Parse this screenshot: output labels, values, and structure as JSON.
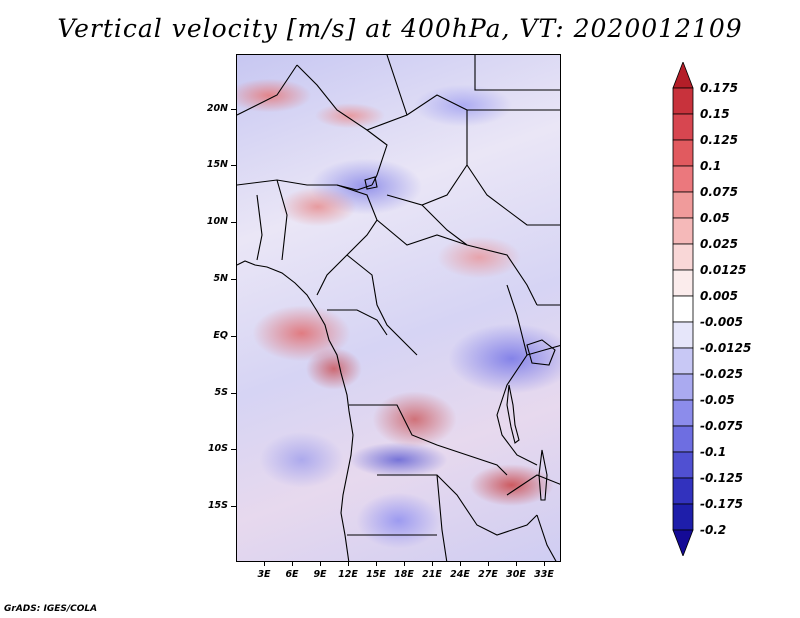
{
  "title": "Vertical velocity [m/s] at 400hPa, VT: 2020012109",
  "y_axis": {
    "labels": [
      "20N",
      "15N",
      "10N",
      "5N",
      "EQ",
      "5S",
      "10S",
      "15S"
    ]
  },
  "x_axis": {
    "labels": [
      "3E",
      "6E",
      "9E",
      "12E",
      "15E",
      "18E",
      "21E",
      "24E",
      "27E",
      "30E",
      "33E"
    ]
  },
  "colorbar": {
    "labels": [
      "0.175",
      "0.15",
      "0.125",
      "0.1",
      "0.075",
      "0.05",
      "0.025",
      "0.0125",
      "0.005",
      "-0.005",
      "-0.0125",
      "-0.025",
      "-0.05",
      "-0.075",
      "-0.1",
      "-0.125",
      "-0.175",
      "-0.2"
    ],
    "colors": [
      "#b41e28",
      "#c8323c",
      "#d74650",
      "#e15a5f",
      "#eb787d",
      "#f09b9b",
      "#f5b9b9",
      "#f9d7d7",
      "#fbecec",
      "#ffffff",
      "#e6e6fa",
      "#c8c8f5",
      "#aaaaf0",
      "#8c8ceb",
      "#6e6ee1",
      "#5050d2",
      "#3232be",
      "#1e1eaa",
      "#140a96"
    ]
  },
  "credit": "GrADS: IGES/COLA"
}
